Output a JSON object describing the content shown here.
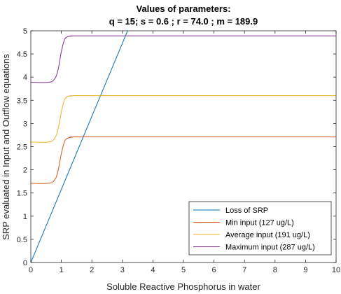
{
  "chart_data": {
    "type": "line",
    "title": "Values of parameters:",
    "subtitle": "q = 15; s = 0.6 ; r = 74.0 ; m = 189.9",
    "xlabel": "Soluble Reactive Phosphorus in water",
    "ylabel": "SRP evaluated in Input and Outflow equations",
    "xlim": [
      0,
      10
    ],
    "ylim": [
      0,
      5
    ],
    "xticks": [
      "0",
      "1",
      "2",
      "3",
      "4",
      "5",
      "6",
      "7",
      "8",
      "9",
      "10"
    ],
    "yticks": [
      "0",
      "0.5",
      "1",
      "1.5",
      "2",
      "2.5",
      "3",
      "3.5",
      "4",
      "4.5",
      "5"
    ],
    "grid": false,
    "legend_position": "bottom-right",
    "series": [
      {
        "name": "Loss of SRP",
        "color": "#0072BD",
        "x": [
          0,
          3.17
        ],
        "y": [
          0,
          5.0
        ]
      },
      {
        "name": "Min input (127 ug/L)",
        "color": "#D95319",
        "x": [
          0,
          0.6,
          0.8,
          0.9,
          1.0,
          1.1,
          1.2,
          1.4,
          1.6,
          2.0,
          10
        ],
        "y": [
          1.71,
          1.71,
          1.8,
          2.0,
          2.35,
          2.6,
          2.68,
          2.71,
          2.71,
          2.71,
          2.71
        ]
      },
      {
        "name": "Average input (191 ug/L)",
        "color": "#EDB120",
        "x": [
          0,
          0.6,
          0.8,
          0.9,
          1.0,
          1.1,
          1.2,
          1.4,
          1.6,
          2.0,
          10
        ],
        "y": [
          2.6,
          2.6,
          2.7,
          2.9,
          3.25,
          3.5,
          3.58,
          3.6,
          3.6,
          3.6,
          3.6
        ]
      },
      {
        "name": "Maximum input (287 ug/L)",
        "color": "#7E2F8E",
        "x": [
          0,
          0.6,
          0.8,
          0.9,
          1.0,
          1.1,
          1.2,
          1.4,
          1.6,
          2.0,
          10
        ],
        "y": [
          3.89,
          3.89,
          3.98,
          4.18,
          4.55,
          4.8,
          4.87,
          4.89,
          4.89,
          4.89,
          4.89
        ]
      }
    ]
  }
}
